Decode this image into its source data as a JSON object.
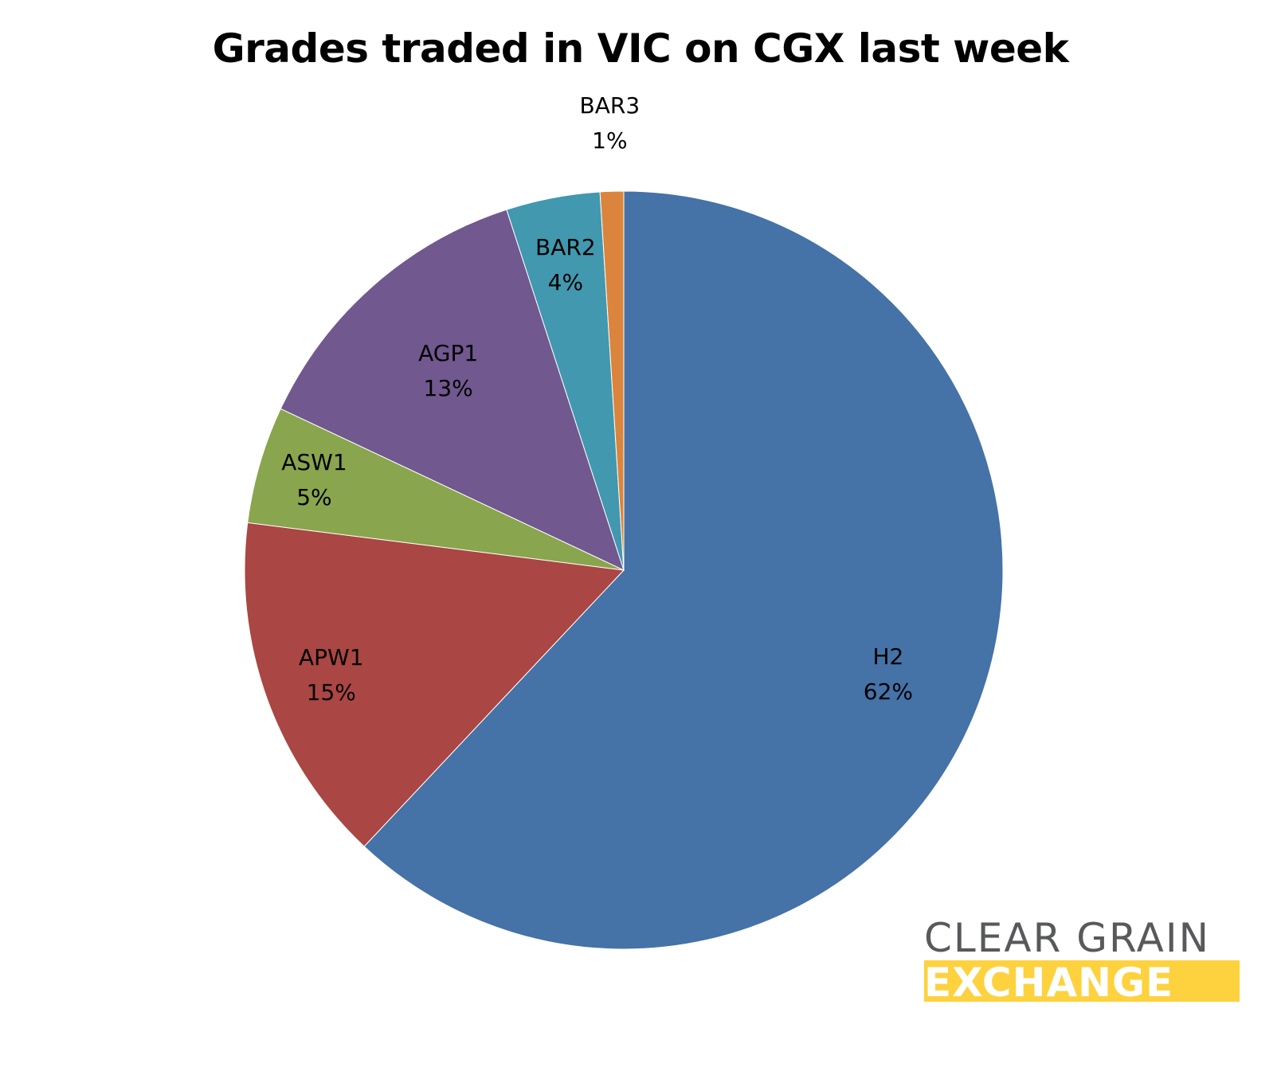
{
  "chart_data": {
    "type": "pie",
    "title": "Grades traded in VIC on CGX last week",
    "categories": [
      "H2",
      "APW1",
      "ASW1",
      "AGP1",
      "BAR2",
      "BAR3"
    ],
    "values": [
      62,
      15,
      5,
      13,
      4,
      1
    ],
    "unit": "%",
    "labels": [
      "62%",
      "15%",
      "5%",
      "13%",
      "4%",
      "1%"
    ],
    "colors": [
      "#4572a7",
      "#aa4643",
      "#89a54e",
      "#71588f",
      "#4198af",
      "#db843d"
    ],
    "start_angle": "12 o'clock",
    "direction": "clockwise",
    "legend": "none (data labels on slices)"
  },
  "logo": {
    "line1": "CLEAR GRAIN",
    "line2": "EXCHANGE",
    "text_color": "#58595b",
    "band_color": "#fdd23e"
  }
}
